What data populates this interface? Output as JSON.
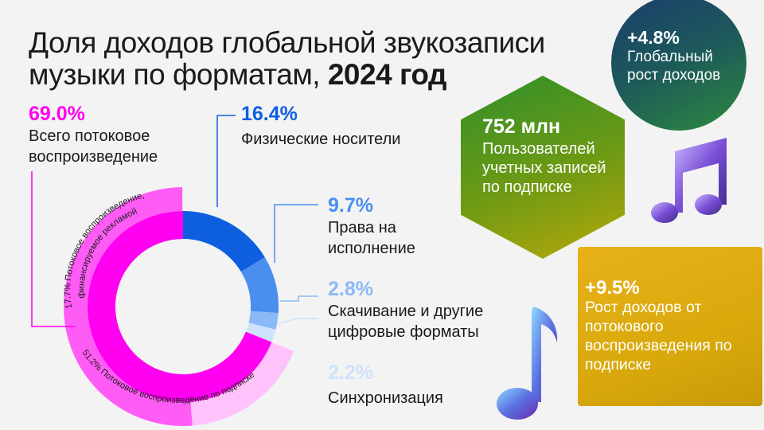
{
  "title": {
    "line1": "Доля доходов глобальной звукозаписи",
    "line2_regular": "музыки по форматам, ",
    "line2_bold": "2024 год"
  },
  "labels": {
    "streaming_total": {
      "pct": "69.0%",
      "text_line1": "Всего потоковое",
      "text_line2": "воспроизведение"
    },
    "physical": {
      "pct": "16.4%",
      "text_line1": "Физические носители"
    },
    "performance": {
      "pct": "9.7%",
      "text_line1": "Права на",
      "text_line2": "исполнение"
    },
    "downloads": {
      "pct": "2.8%",
      "text_line1": "Скачивание и другие",
      "text_line2": "цифровые форматы"
    },
    "sync": {
      "pct": "2.2%",
      "text_line1": "Синхронизация"
    }
  },
  "inner_labels": {
    "ad_supported_line1": "17.7% Потоковое воспроизведение,",
    "ad_supported_line2": "финансируемое рекламой",
    "subscription": "51.2% Потоковое воспроизведение по подписке"
  },
  "stats": {
    "subscribers": {
      "value": "752 млн",
      "text": "Пользователей учетных записей по подписке"
    },
    "global_growth": {
      "value": "+4.8%",
      "text": "Глобальный рост доходов"
    },
    "subscription_growth": {
      "value": "+9.5%",
      "text": "Рост доходов от потокового воспроизведения по подписке"
    }
  },
  "icons": [
    "music-note-double-icon",
    "music-note-single-icon"
  ],
  "chart_data": {
    "type": "pie",
    "title": "Доля доходов глобальной звукозаписи музыки по форматам, 2024 год",
    "donut": true,
    "series": [
      {
        "name": "Всего потоковое воспроизведение",
        "value": 69.0,
        "color": "#ff00f0",
        "subsegments": [
          {
            "name": "Потоковое воспроизведение по подписке",
            "value": 51.2,
            "color": "#ff5cf5"
          },
          {
            "name": "Потоковое воспроизведение, финансируемое рекламой",
            "value": 17.7,
            "color": "#ffc2fb"
          }
        ]
      },
      {
        "name": "Физические носители",
        "value": 16.4,
        "color": "#0e5fe0"
      },
      {
        "name": "Права на исполнение",
        "value": 9.7,
        "color": "#4a8ff0"
      },
      {
        "name": "Скачивание и другие цифровые форматы",
        "value": 2.8,
        "color": "#8bb9f7"
      },
      {
        "name": "Синхронизация",
        "value": 2.2,
        "color": "#cfe2fb"
      }
    ],
    "start_angle_deg": 0
  }
}
